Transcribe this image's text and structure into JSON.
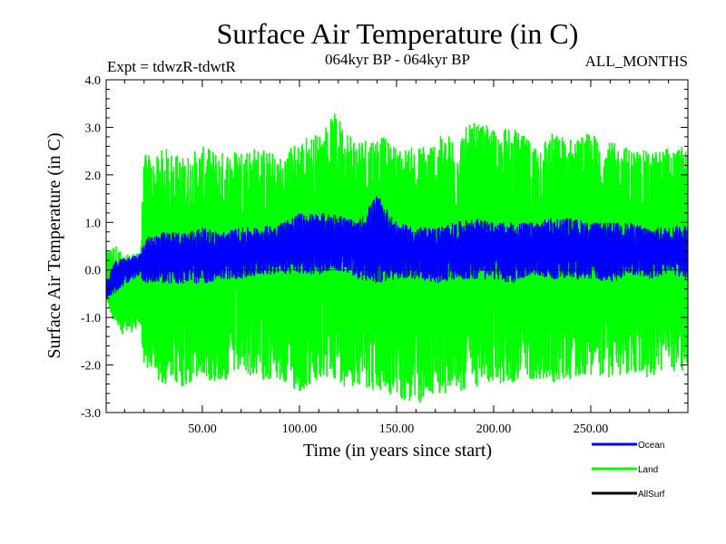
{
  "chart_data": {
    "type": "line",
    "title": "Surface Air Temperature (in C)",
    "subtitle": "064kyr BP - 064kyr BP",
    "experiment": "Expt = tdwzR-tdwtR",
    "period": "ALL_MONTHS",
    "xlabel": "Time (in years since start)",
    "ylabel": "Surface Air Temperature (in C)",
    "xlim": [
      0.5,
      300
    ],
    "ylim": [
      -3.0,
      4.0
    ],
    "x_ticks": [
      50,
      100,
      150,
      200,
      250
    ],
    "x_tick_labels": [
      "50.00",
      "100.00",
      "150.00",
      "200.00",
      "250.00"
    ],
    "y_ticks": [
      -3,
      -2,
      -1,
      0,
      1,
      2,
      3,
      4
    ],
    "y_tick_labels": [
      "-3.0",
      "-2.0",
      "-1.0",
      "0.0",
      "1.0",
      "2.0",
      "3.0",
      "4.0"
    ],
    "zero_line": 0.0,
    "series": [
      {
        "name": "Land",
        "color": "#00ff00",
        "x": [
          1,
          5,
          10,
          15,
          18,
          20,
          22,
          25,
          30,
          40,
          50,
          60,
          70,
          80,
          90,
          100,
          110,
          118,
          125,
          130,
          140,
          150,
          160,
          170,
          180,
          190,
          200,
          210,
          220,
          230,
          240,
          250,
          260,
          270,
          280,
          290,
          300
        ],
        "upper": [
          0.4,
          0.55,
          0.3,
          0.4,
          0.3,
          2.4,
          2.5,
          2.3,
          2.6,
          2.4,
          2.6,
          2.5,
          2.6,
          2.6,
          2.4,
          2.8,
          2.9,
          3.3,
          3.0,
          2.8,
          2.9,
          2.6,
          2.6,
          2.8,
          2.9,
          3.1,
          3.0,
          3.0,
          2.7,
          2.9,
          2.8,
          2.9,
          2.7,
          2.6,
          2.5,
          2.6,
          2.6
        ],
        "lower": [
          -0.7,
          -1.2,
          -1.4,
          -1.3,
          -1.2,
          -2.0,
          -2.2,
          -2.3,
          -2.4,
          -2.5,
          -2.3,
          -2.4,
          -2.2,
          -2.3,
          -2.4,
          -2.6,
          -2.4,
          -2.3,
          -2.5,
          -2.4,
          -2.6,
          -2.7,
          -2.9,
          -2.6,
          -2.6,
          -2.5,
          -2.4,
          -2.4,
          -2.3,
          -2.4,
          -2.3,
          -2.2,
          -2.3,
          -2.2,
          -2.3,
          -2.1,
          -2.2
        ]
      },
      {
        "name": "Ocean",
        "color": "#0000ff",
        "x": [
          1,
          5,
          10,
          15,
          18,
          20,
          22,
          25,
          30,
          40,
          50,
          60,
          70,
          80,
          90,
          100,
          110,
          118,
          125,
          130,
          140,
          150,
          160,
          170,
          180,
          190,
          200,
          210,
          220,
          230,
          240,
          250,
          260,
          270,
          280,
          290,
          300
        ],
        "upper": [
          -0.2,
          0.2,
          0.25,
          0.3,
          0.35,
          0.6,
          0.7,
          0.75,
          0.8,
          0.8,
          0.9,
          0.8,
          0.9,
          0.9,
          1.0,
          1.2,
          1.2,
          1.2,
          1.1,
          1.0,
          1.6,
          1.0,
          0.9,
          0.9,
          1.0,
          1.1,
          1.0,
          1.0,
          1.0,
          1.1,
          1.1,
          1.0,
          1.0,
          1.0,
          0.9,
          0.9,
          1.0
        ],
        "lower": [
          -0.6,
          -0.5,
          -0.3,
          -0.2,
          -0.1,
          -0.3,
          -0.3,
          -0.25,
          -0.3,
          -0.3,
          -0.3,
          -0.2,
          -0.2,
          -0.1,
          -0.1,
          -0.1,
          -0.1,
          0.0,
          -0.1,
          -0.2,
          -0.3,
          -0.2,
          -0.2,
          -0.3,
          -0.2,
          -0.2,
          -0.2,
          -0.3,
          -0.1,
          -0.2,
          -0.2,
          -0.2,
          -0.3,
          -0.1,
          -0.2,
          -0.1,
          -0.2
        ]
      },
      {
        "name": "AllSurf",
        "color": "#000000",
        "x": [],
        "upper": [],
        "lower": []
      }
    ],
    "legend": {
      "placement": "bottom-right",
      "items": [
        {
          "label": "Ocean",
          "color": "#0000ff"
        },
        {
          "label": "Land",
          "color": "#00ff00"
        },
        {
          "label": "AllSurf",
          "color": "#000000"
        }
      ]
    }
  }
}
